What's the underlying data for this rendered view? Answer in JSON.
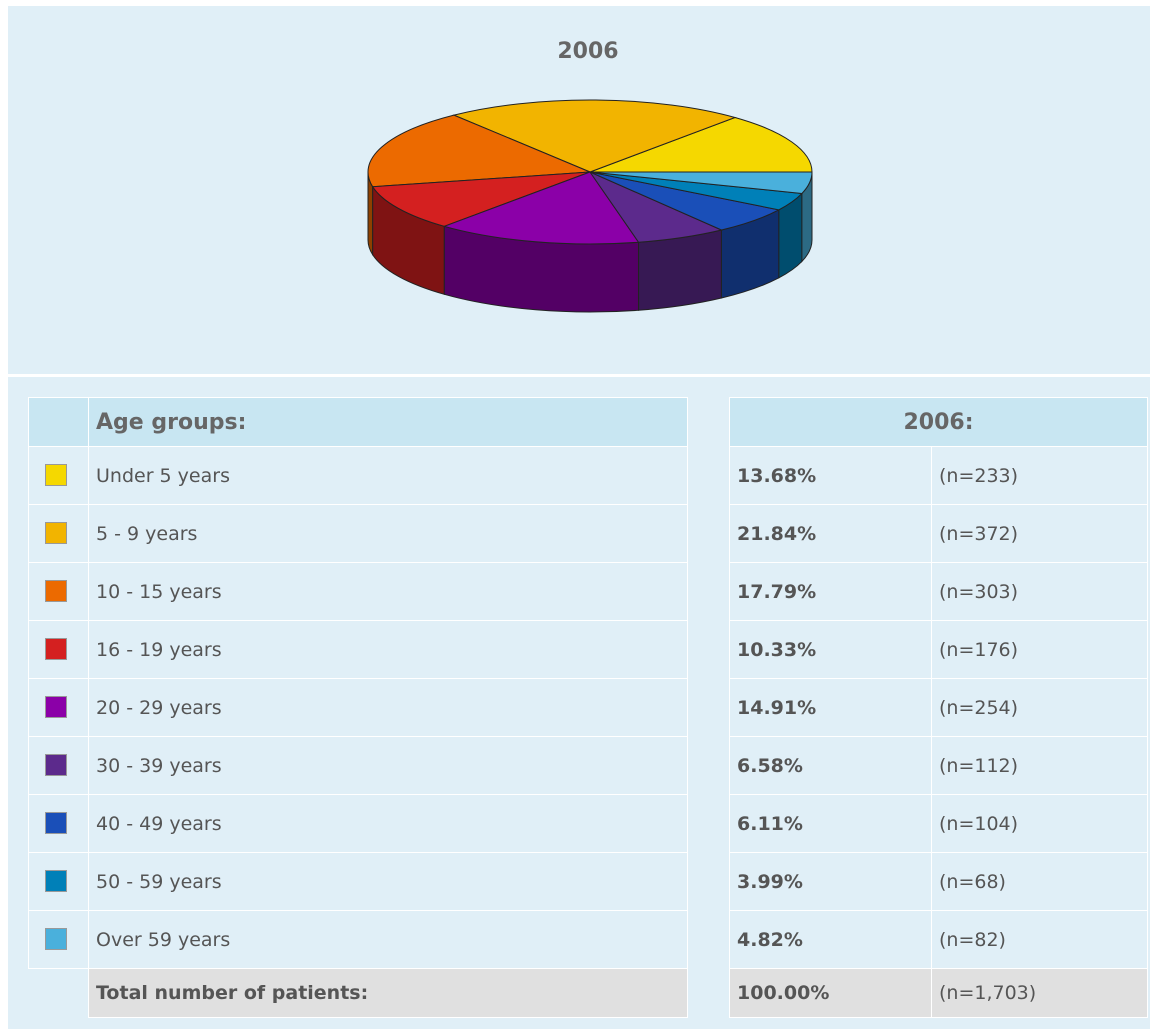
{
  "chart_data": {
    "type": "pie",
    "title": "2006",
    "categories": [
      "Under 5 years",
      "5 - 9 years",
      "10 - 15 years",
      "16 - 19 years",
      "20 - 29 years",
      "30 - 39 years",
      "40 - 49 years",
      "50 - 59 years",
      "Over 59 years"
    ],
    "values": [
      13.68,
      21.84,
      17.79,
      10.33,
      14.91,
      6.58,
      6.11,
      3.99,
      4.82
    ],
    "value_labels": [
      "13.68%",
      "21.84%",
      "17.79%",
      "10.33%",
      "14.91%",
      "6.58%",
      "6.11%",
      "3.99%",
      "4.82%"
    ],
    "colors": [
      "#f5d800",
      "#f2b400",
      "#ec6a00",
      "#d42020",
      "#8b00a8",
      "#5c2a8c",
      "#1a4fb8",
      "#0080b8",
      "#4ab0dc"
    ]
  },
  "table": {
    "header_label": "Age groups:",
    "header_year": "2006:",
    "counts": [
      "(n=233)",
      "(n=372)",
      "(n=303)",
      "(n=176)",
      "(n=254)",
      "(n=112)",
      "(n=104)",
      "(n=68)",
      "(n=82)"
    ],
    "total_label": "Total number of patients:",
    "total_percent": "100.00%",
    "total_count": "(n=1,703)"
  }
}
